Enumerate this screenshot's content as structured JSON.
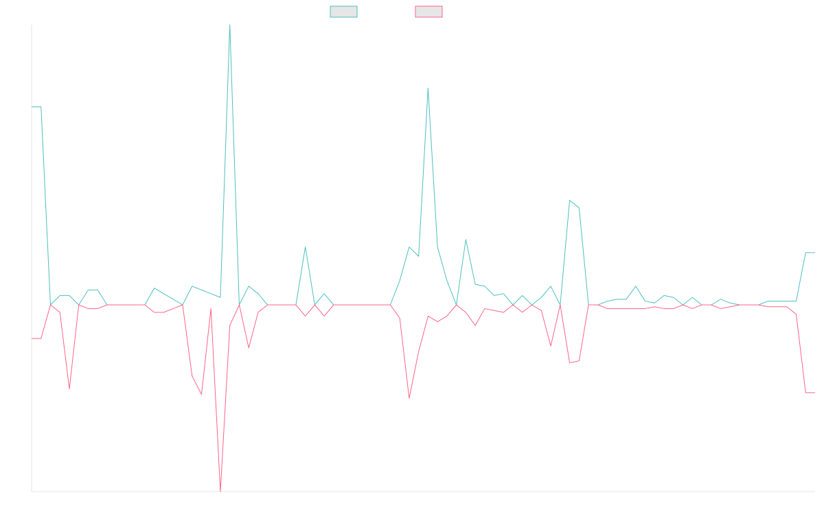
{
  "chart_data": {
    "type": "line",
    "title": "",
    "xlabel": "",
    "ylabel": "",
    "grid": false,
    "legend_position": "top-center",
    "x_count": 84,
    "ylim": [
      -1.0,
      1.5
    ],
    "series": [
      {
        "color": "#4bc0c0",
        "values": [
          1.06,
          1.06,
          0,
          0.05,
          0.05,
          0,
          0.08,
          0.08,
          0,
          0,
          0,
          0,
          0,
          0.09,
          0.06,
          0.03,
          0,
          0.1,
          0.08,
          0.06,
          0.04,
          1.5,
          0,
          0.1,
          0.06,
          0,
          0,
          0,
          0,
          0.31,
          0,
          0.06,
          0,
          0,
          0,
          0,
          0,
          0,
          0,
          0.13,
          0.31,
          0.26,
          1.16,
          0.31,
          0.13,
          0,
          0.35,
          0.11,
          0.1,
          0.05,
          0.06,
          0,
          0.05,
          0,
          0.04,
          0.1,
          0,
          0.56,
          0.52,
          0,
          0,
          0.02,
          0.03,
          0.03,
          0.1,
          0.02,
          0.01,
          0.05,
          0.04,
          0,
          0.04,
          0,
          0,
          0.03,
          0.01,
          0,
          0,
          0,
          0.02,
          0.02,
          0.02,
          0.02,
          0.28,
          0.28
        ]
      },
      {
        "color": "#ff6384",
        "values": [
          -0.18,
          -0.18,
          0,
          -0.04,
          -0.45,
          0,
          -0.02,
          -0.02,
          0,
          0,
          0,
          0,
          0,
          -0.04,
          -0.04,
          -0.02,
          0,
          -0.38,
          -0.48,
          -0.02,
          -1.0,
          -0.11,
          0,
          -0.23,
          -0.04,
          0,
          0,
          0,
          0,
          -0.06,
          0,
          -0.06,
          0,
          0,
          0,
          0,
          0,
          0,
          0,
          -0.07,
          -0.5,
          -0.25,
          -0.06,
          -0.09,
          -0.06,
          0,
          -0.04,
          -0.11,
          -0.02,
          -0.03,
          -0.04,
          0,
          -0.04,
          0,
          -0.03,
          -0.22,
          0,
          -0.31,
          -0.3,
          0,
          0,
          -0.02,
          -0.02,
          -0.02,
          -0.02,
          -0.02,
          -0.01,
          -0.02,
          -0.02,
          0,
          -0.02,
          0,
          0,
          -0.02,
          -0.01,
          0,
          0,
          0,
          -0.01,
          -0.01,
          -0.01,
          -0.05,
          -0.47,
          -0.47
        ]
      }
    ]
  }
}
